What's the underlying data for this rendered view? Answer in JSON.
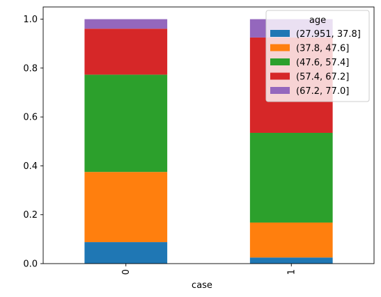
{
  "chart_data": {
    "type": "bar",
    "stacked": true,
    "categories": [
      "0",
      "1"
    ],
    "xlabel": "case",
    "ylabel": "",
    "ylim": [
      0,
      1.05
    ],
    "yticks": [
      0.0,
      0.2,
      0.4,
      0.6,
      0.8,
      1.0
    ],
    "ytick_labels": [
      "0.0",
      "0.2",
      "0.4",
      "0.6",
      "0.8",
      "1.0"
    ],
    "grid": false,
    "legend": {
      "title": "age",
      "placement": "top-right"
    },
    "series": [
      {
        "name": "(27.951, 37.8]",
        "color": "#1f77b4",
        "values": [
          0.088,
          0.025
        ]
      },
      {
        "name": "(37.8, 47.6]",
        "color": "#ff7f0e",
        "values": [
          0.287,
          0.143
        ]
      },
      {
        "name": "(47.6, 57.4]",
        "color": "#2ca02c",
        "values": [
          0.398,
          0.367
        ]
      },
      {
        "name": "(57.4, 67.2]",
        "color": "#d62728",
        "values": [
          0.188,
          0.39
        ]
      },
      {
        "name": "(67.2, 77.0]",
        "color": "#9467bd",
        "values": [
          0.039,
          0.075
        ]
      }
    ]
  }
}
